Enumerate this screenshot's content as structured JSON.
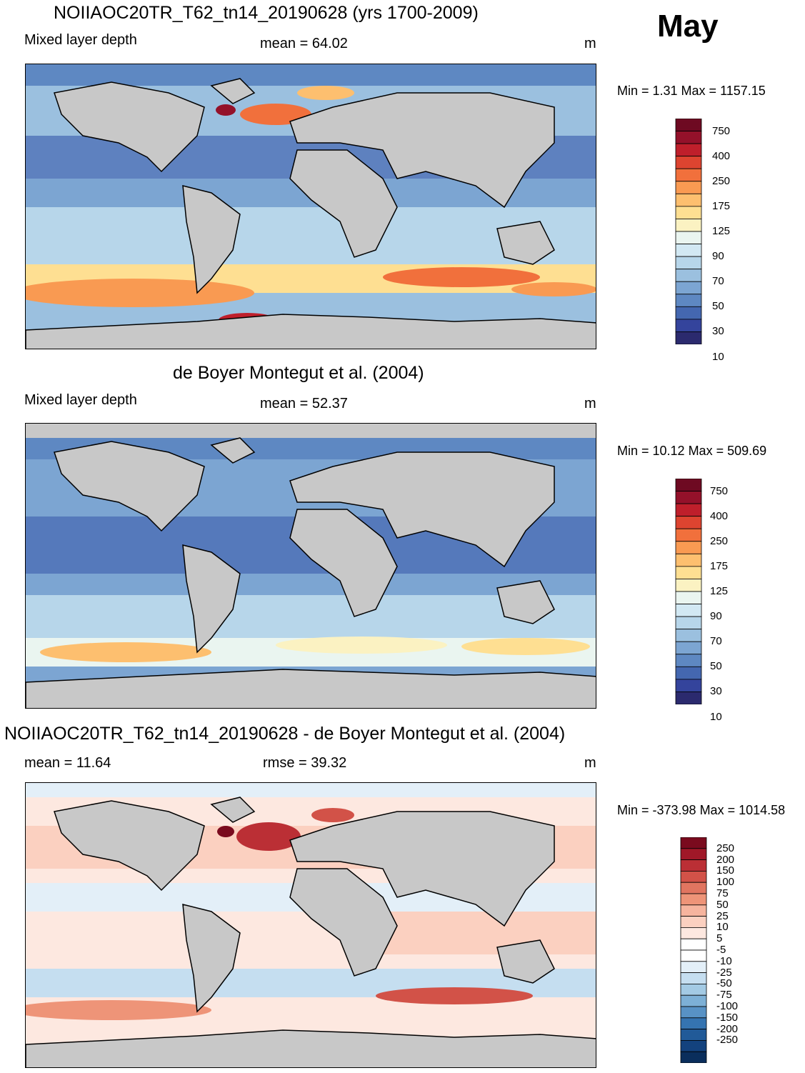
{
  "month": "May",
  "panels": [
    {
      "title": "NOIIAOC20TR_T62_tn14_20190628 (yrs 1700-2009)",
      "left_label": "Mixed layer depth",
      "center_label": "mean =  64.02",
      "units": "m",
      "minmax": "Min =   1.31 Max = 1157.15",
      "colorbar": {
        "colors": [
          "#2b2a6e",
          "#34449c",
          "#4467b0",
          "#5e88c2",
          "#7ca5d2",
          "#9bc0df",
          "#b7d6ea",
          "#d2e8f3",
          "#eaf5f0",
          "#fbf2c2",
          "#fedf92",
          "#fdbf6f",
          "#f99a52",
          "#f1703c",
          "#dd4430",
          "#bf1f2b",
          "#94112a",
          "#6e0a22"
        ],
        "labels": [
          "750",
          "400",
          "250",
          "175",
          "125",
          "90",
          "70",
          "50",
          "30",
          "10"
        ]
      }
    },
    {
      "title": "de Boyer Montegut et al. (2004)",
      "left_label": "Mixed layer depth",
      "center_label": "mean =  52.37",
      "units": "m",
      "minmax": "Min =  10.12 Max = 509.69",
      "colorbar": {
        "colors": [
          "#2b2a6e",
          "#34449c",
          "#4467b0",
          "#5e88c2",
          "#7ca5d2",
          "#9bc0df",
          "#b7d6ea",
          "#d2e8f3",
          "#eaf5f0",
          "#fbf2c2",
          "#fedf92",
          "#fdbf6f",
          "#f99a52",
          "#f1703c",
          "#dd4430",
          "#bf1f2b",
          "#94112a",
          "#6e0a22"
        ],
        "labels": [
          "750",
          "400",
          "250",
          "175",
          "125",
          "90",
          "70",
          "50",
          "30",
          "10"
        ]
      }
    },
    {
      "title": "NOIIAOC20TR_T62_tn14_20190628 - de Boyer Montegut et al. (2004)",
      "left_label": "mean =  11.64",
      "center_label": "rmse =  39.32",
      "units": "m",
      "minmax": "Min = -373.98 Max = 1014.58",
      "colorbar": {
        "colors": [
          "#0a2e5c",
          "#13427e",
          "#215a98",
          "#3574b1",
          "#5892c5",
          "#7db0d6",
          "#a3cae4",
          "#c5def0",
          "#e3eff8",
          "#ffffff",
          "#ffffff",
          "#fde8e0",
          "#fbd0c0",
          "#f6b49e",
          "#ee9478",
          "#e17560",
          "#d25248",
          "#bb2f35",
          "#a01828",
          "#7a0b1e"
        ],
        "labels": [
          "250",
          "200",
          "150",
          "100",
          "75",
          "50",
          "25",
          "10",
          "5",
          "-5",
          "-10",
          "-25",
          "-50",
          "-75",
          "-100",
          "-150",
          "-200",
          "-250"
        ]
      }
    }
  ]
}
